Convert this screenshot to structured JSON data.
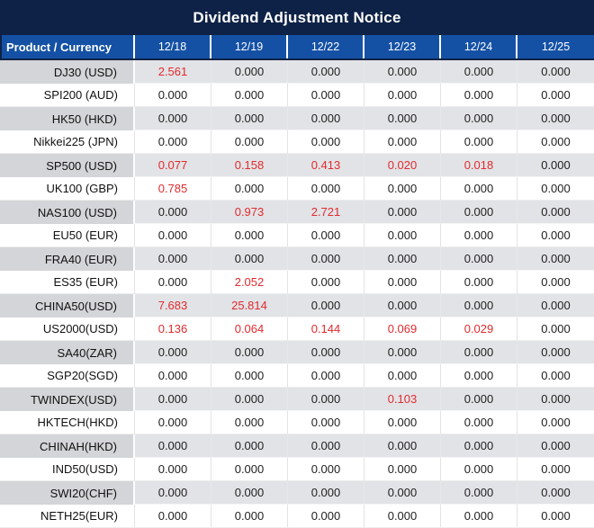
{
  "chart_data": {
    "type": "table",
    "title": "Dividend Adjustment Notice",
    "columns": [
      "Product / Currency",
      "12/18",
      "12/19",
      "12/22",
      "12/23",
      "12/24",
      "12/25"
    ],
    "rows": [
      {
        "product": "DJ30 (USD)",
        "values": [
          "2.561",
          "0.000",
          "0.000",
          "0.000",
          "0.000",
          "0.000"
        ],
        "red_columns": [
          0
        ]
      },
      {
        "product": "SPI200 (AUD)",
        "values": [
          "0.000",
          "0.000",
          "0.000",
          "0.000",
          "0.000",
          "0.000"
        ],
        "red_columns": []
      },
      {
        "product": "HK50 (HKD)",
        "values": [
          "0.000",
          "0.000",
          "0.000",
          "0.000",
          "0.000",
          "0.000"
        ],
        "red_columns": []
      },
      {
        "product": "Nikkei225 (JPN)",
        "values": [
          "0.000",
          "0.000",
          "0.000",
          "0.000",
          "0.000",
          "0.000"
        ],
        "red_columns": []
      },
      {
        "product": "SP500 (USD)",
        "values": [
          "0.077",
          "0.158",
          "0.413",
          "0.020",
          "0.018",
          "0.000"
        ],
        "red_columns": [
          0,
          1,
          2,
          3,
          4
        ]
      },
      {
        "product": "UK100 (GBP)",
        "values": [
          "0.785",
          "0.000",
          "0.000",
          "0.000",
          "0.000",
          "0.000"
        ],
        "red_columns": [
          0
        ]
      },
      {
        "product": "NAS100 (USD)",
        "values": [
          "0.000",
          "0.973",
          "2.721",
          "0.000",
          "0.000",
          "0.000"
        ],
        "red_columns": [
          1,
          2
        ]
      },
      {
        "product": "EU50 (EUR)",
        "values": [
          "0.000",
          "0.000",
          "0.000",
          "0.000",
          "0.000",
          "0.000"
        ],
        "red_columns": []
      },
      {
        "product": "FRA40 (EUR)",
        "values": [
          "0.000",
          "0.000",
          "0.000",
          "0.000",
          "0.000",
          "0.000"
        ],
        "red_columns": []
      },
      {
        "product": "ES35 (EUR)",
        "values": [
          "0.000",
          "2.052",
          "0.000",
          "0.000",
          "0.000",
          "0.000"
        ],
        "red_columns": [
          1
        ]
      },
      {
        "product": "CHINA50(USD)",
        "values": [
          "7.683",
          "25.814",
          "0.000",
          "0.000",
          "0.000",
          "0.000"
        ],
        "red_columns": [
          0,
          1
        ]
      },
      {
        "product": "US2000(USD)",
        "values": [
          "0.136",
          "0.064",
          "0.144",
          "0.069",
          "0.029",
          "0.000"
        ],
        "red_columns": [
          0,
          1,
          2,
          3,
          4
        ]
      },
      {
        "product": "SA40(ZAR)",
        "values": [
          "0.000",
          "0.000",
          "0.000",
          "0.000",
          "0.000",
          "0.000"
        ],
        "red_columns": []
      },
      {
        "product": "SGP20(SGD)",
        "values": [
          "0.000",
          "0.000",
          "0.000",
          "0.000",
          "0.000",
          "0.000"
        ],
        "red_columns": []
      },
      {
        "product": "TWINDEX(USD)",
        "values": [
          "0.000",
          "0.000",
          "0.000",
          "0.103",
          "0.000",
          "0.000"
        ],
        "red_columns": [
          3
        ]
      },
      {
        "product": "HKTECH(HKD)",
        "values": [
          "0.000",
          "0.000",
          "0.000",
          "0.000",
          "0.000",
          "0.000"
        ],
        "red_columns": []
      },
      {
        "product": "CHINAH(HKD)",
        "values": [
          "0.000",
          "0.000",
          "0.000",
          "0.000",
          "0.000",
          "0.000"
        ],
        "red_columns": []
      },
      {
        "product": "IND50(USD)",
        "values": [
          "0.000",
          "0.000",
          "0.000",
          "0.000",
          "0.000",
          "0.000"
        ],
        "red_columns": []
      },
      {
        "product": "SWI20(CHF)",
        "values": [
          "0.000",
          "0.000",
          "0.000",
          "0.000",
          "0.000",
          "0.000"
        ],
        "red_columns": []
      },
      {
        "product": "NETH25(EUR)",
        "values": [
          "0.000",
          "0.000",
          "0.000",
          "0.000",
          "0.000",
          "0.000"
        ],
        "red_columns": []
      }
    ],
    "layout": {
      "row_striping": "first row gray, alternating",
      "red_meaning": "non-zero dividend adjustment highlighted in red"
    }
  },
  "colors": {
    "title_bar_bg": "#0e2247",
    "header_cell_bg": "#1451a5",
    "highlight_red": "#e02b2f",
    "row_gray_product_bg": "#d4d5d8",
    "row_gray_value_bg": "#e2e3e6",
    "row_white_bg": "#ffffff"
  }
}
